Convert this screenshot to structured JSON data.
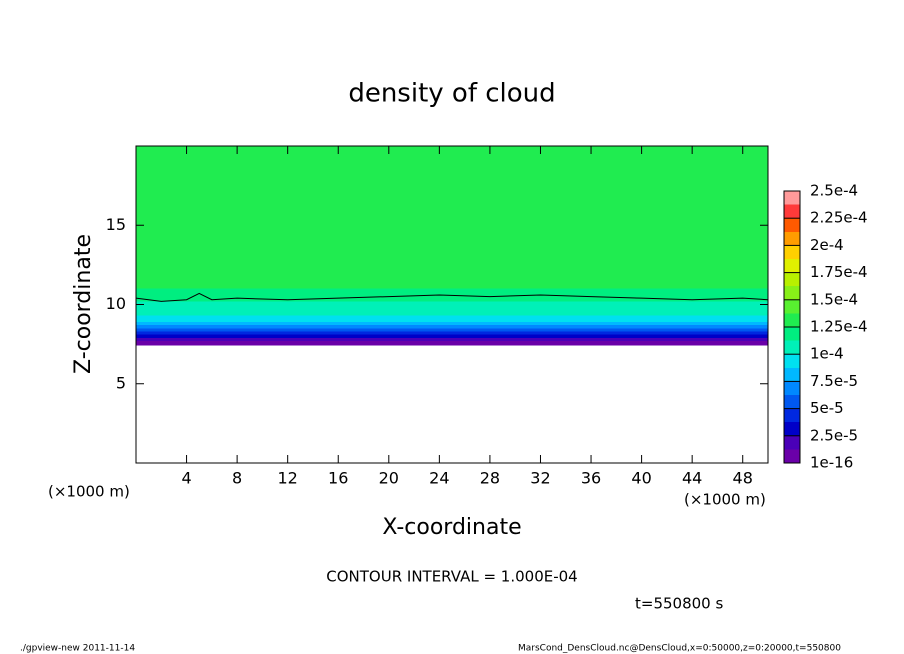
{
  "chart_data": {
    "type": "contour",
    "title": "density of cloud",
    "xlabel": "X-coordinate",
    "ylabel": "Z-coordinate",
    "xunit_left": "(×1000 m)",
    "xunit_right": "(×1000 m)",
    "xlim": [
      0,
      50
    ],
    "ylim": [
      0,
      20
    ],
    "xticks": [
      4,
      8,
      12,
      16,
      20,
      24,
      28,
      32,
      36,
      40,
      44,
      48
    ],
    "yticks": [
      5,
      10,
      15
    ],
    "profile_z": [
      7.4,
      7.7,
      7.9,
      8.1,
      8.3,
      8.5,
      8.7,
      8.9,
      9.1,
      9.3,
      9.5,
      9.8,
      10.2,
      11,
      12,
      13.5,
      15,
      17
    ],
    "profile_values": [
      5e-06,
      2e-05,
      3e-05,
      4e-05,
      5.5e-05,
      6.5e-05,
      7.8e-05,
      8.8e-05,
      9.5e-05,
      0.000102,
      0.000108,
      0.000112,
      0.00012,
      0.000128,
      0.000132,
      0.00013,
      0.000128,
      0.000125
    ],
    "contour_x": [
      0,
      2,
      4,
      5,
      6,
      8,
      12,
      16,
      20,
      24,
      28,
      32,
      36,
      40,
      44,
      48,
      50
    ],
    "contour_z": [
      10.4,
      10.2,
      10.3,
      10.7,
      10.3,
      10.4,
      10.3,
      10.4,
      10.5,
      10.6,
      10.5,
      10.6,
      10.5,
      10.4,
      10.3,
      10.4,
      10.3
    ],
    "clim": [
      0,
      0.00025
    ],
    "colors": [
      "#6a00a8",
      "#4a00b8",
      "#0000c8",
      "#0028e0",
      "#0058f0",
      "#0088ff",
      "#00b8ff",
      "#00e0f0",
      "#00f0b8",
      "#00ee80",
      "#20ec50",
      "#58f030",
      "#88f018",
      "#b8f000",
      "#e0f000",
      "#ffd000",
      "#ff9c00",
      "#ff5a00",
      "#ff3a3a",
      "#ff9a9a"
    ],
    "colorbar_ticks": [
      {
        "value": 1e-16,
        "label": "1e-16"
      },
      {
        "value": 2.5e-05,
        "label": "2.5e-5"
      },
      {
        "value": 5e-05,
        "label": "5e-5"
      },
      {
        "value": 7.5e-05,
        "label": "7.5e-5"
      },
      {
        "value": 0.0001,
        "label": "1e-4"
      },
      {
        "value": 0.000125,
        "label": "1.25e-4"
      },
      {
        "value": 0.00015,
        "label": "1.5e-4"
      },
      {
        "value": 0.000175,
        "label": "1.75e-4"
      },
      {
        "value": 0.0002,
        "label": "2e-4"
      },
      {
        "value": 0.000225,
        "label": "2.25e-4"
      },
      {
        "value": 0.00025,
        "label": "2.5e-4"
      }
    ],
    "contour_interval": "CONTOUR INTERVAL = 1.000E-04",
    "time_label": "t=550800 s",
    "footer_left": "./gpview-new   2011-11-14",
    "footer_right": "MarsCond_DensCloud.nc@DensCloud,x=0:50000,z=0:20000,t=550800"
  }
}
